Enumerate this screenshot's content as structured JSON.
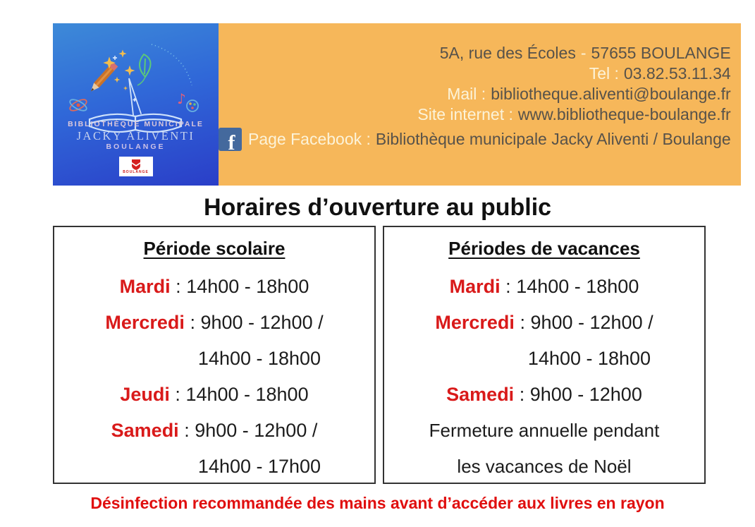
{
  "banner": {
    "logo": {
      "line1": "BIBLIOTHÈQUE MUNICIPALE",
      "line2": "JACKY ALIVENTI",
      "line3": "BOULANGE",
      "crest_label": "BOULANGE"
    },
    "contact": {
      "address_left": "5A, rue des Écoles",
      "address_sep": "-",
      "address_right": "57655 BOULANGE",
      "tel_label": "Tel :",
      "tel_value": "03.82.53.11.34",
      "mail_label": "Mail :",
      "mail_value": "bibliotheque.aliventi@boulange.fr",
      "site_label": "Site internet :",
      "site_value": "www.bibliotheque-boulange.fr",
      "fb_label": "Page Facebook :",
      "fb_value": "Bibliothèque municipale Jacky Aliventi / Boulange"
    }
  },
  "title": "Horaires d’ouverture au public",
  "schedule": {
    "sep": " : ",
    "boxes": [
      {
        "header": "Période scolaire",
        "rows": [
          {
            "day": "Mardi",
            "times": "14h00 - 18h00"
          },
          {
            "day": "Mercredi",
            "times": "9h00 - 12h00 /"
          },
          {
            "times": "14h00 - 18h00",
            "indent": true
          },
          {
            "day": "Jeudi",
            "times": "14h00 - 18h00"
          },
          {
            "day": "Samedi",
            "times": "9h00 - 12h00 /"
          },
          {
            "times": "14h00 - 17h00",
            "indent": true
          }
        ]
      },
      {
        "header": "Périodes de vacances",
        "rows": [
          {
            "day": "Mardi",
            "times": "14h00 - 18h00"
          },
          {
            "day": "Mercredi",
            "times": "9h00 - 12h00 /"
          },
          {
            "times": "14h00 - 18h00",
            "indent": true
          },
          {
            "day": "Samedi",
            "times": "9h00 - 12h00"
          },
          {
            "plain": "Fermeture annuelle pendant"
          },
          {
            "plain": "les vacances de Noël"
          }
        ]
      }
    ]
  },
  "footer": "Désinfection recommandée des mains avant d’accéder aux livres en rayon",
  "colors": {
    "banner_orange": "#f6b75a",
    "banner_blue_top": "#3d8ad8",
    "banner_blue_bottom": "#2a3ec8",
    "contact_label": "#fcf3d9",
    "contact_value": "#57524a",
    "day_red": "#d91a1a",
    "footer_red": "#e00f0f",
    "facebook_blue": "#44699d"
  }
}
